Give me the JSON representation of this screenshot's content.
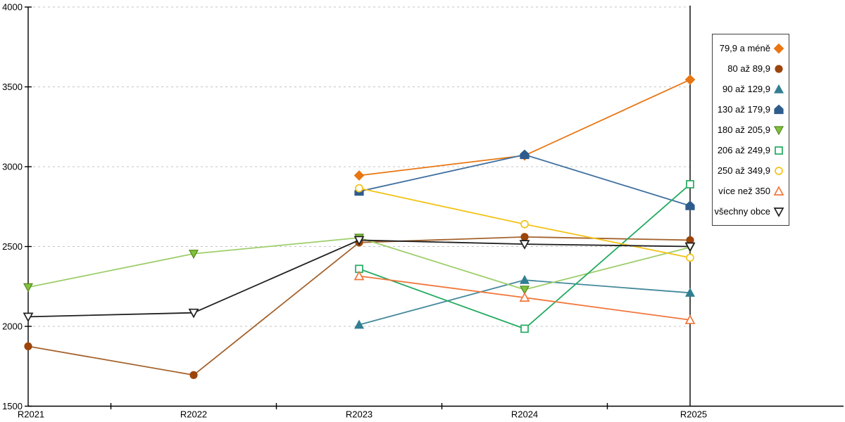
{
  "chart_data": {
    "type": "line",
    "title": "",
    "xlabel": "",
    "ylabel": "",
    "categories": [
      "R2021",
      "R2022",
      "R2023",
      "R2024",
      "R2025"
    ],
    "ylim": [
      1500,
      4000
    ],
    "ytick_step": 500,
    "ytick_labels": [
      "1500",
      "2000",
      "2500",
      "3000",
      "3500",
      "4000"
    ],
    "grid": "horizontal-dashed",
    "legend_position": "right-outside",
    "colors": {
      "axis": "#000000",
      "gridline": "#c3c3c3",
      "background": "#ffffff"
    },
    "series": [
      {
        "name": "79,9 a méně",
        "marker": "diamond",
        "marker_fill": "solid",
        "color": "#e87612",
        "line_color": "#e87612",
        "values": [
          null,
          null,
          2945,
          3070,
          3545
        ]
      },
      {
        "name": "80 až 89,9",
        "marker": "circle",
        "marker_fill": "solid",
        "color": "#9c4409",
        "line_color": "#a4632e",
        "values": [
          1875,
          1695,
          2525,
          2560,
          2540
        ]
      },
      {
        "name": "90 až 129,9",
        "marker": "triangle-up",
        "marker_fill": "solid",
        "color": "#327e91",
        "line_color": "#44899b",
        "values": [
          null,
          null,
          2010,
          2290,
          2210
        ]
      },
      {
        "name": "130 až 179,9",
        "marker": "pentagon",
        "marker_fill": "solid",
        "color": "#2e5c8c",
        "line_color": "#40709f",
        "values": [
          null,
          null,
          2845,
          3075,
          2755
        ]
      },
      {
        "name": "180 až 205,9",
        "marker": "triangle-down",
        "marker_fill": "solid",
        "color": "#7fc23c",
        "line_color": "#9ece6b",
        "values": [
          2245,
          2455,
          2555,
          2230,
          2495
        ]
      },
      {
        "name": "206 až 249,9",
        "marker": "square",
        "marker_fill": "open",
        "color": "#23aa60",
        "line_color": "#23aa60",
        "values": [
          null,
          null,
          2360,
          1985,
          2890
        ]
      },
      {
        "name": "250 až 349,9",
        "marker": "circle",
        "marker_fill": "open",
        "color": "#f3c317",
        "line_color": "#f3c317",
        "values": [
          null,
          null,
          2865,
          2640,
          2430
        ]
      },
      {
        "name": "více než 350",
        "marker": "triangle-up",
        "marker_fill": "open",
        "color": "#f0773b",
        "line_color": "#f0773b",
        "values": [
          null,
          null,
          2315,
          2180,
          2040
        ]
      },
      {
        "name": "všechny obce",
        "marker": "triangle-down",
        "marker_fill": "open",
        "color": "#1f1f1f",
        "line_color": "#1f1f1f",
        "values": [
          2060,
          2085,
          2540,
          2515,
          2500
        ]
      }
    ]
  }
}
